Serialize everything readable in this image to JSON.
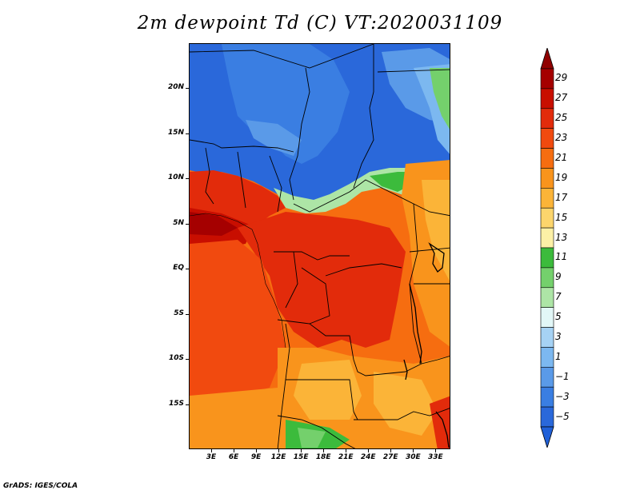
{
  "title": "2m dewpoint Td (C) VT:2020031109",
  "credit": "GrADS: IGES/COLA",
  "map": {
    "lon_range": [
      0,
      35
    ],
    "lat_range": [
      -20,
      25
    ],
    "lat_ticks": [
      {
        "value": 20,
        "label": "20N"
      },
      {
        "value": 15,
        "label": "15N"
      },
      {
        "value": 10,
        "label": "10N"
      },
      {
        "value": 5,
        "label": "5N"
      },
      {
        "value": 0,
        "label": "EQ"
      },
      {
        "value": -5,
        "label": "5S"
      },
      {
        "value": -10,
        "label": "10S"
      },
      {
        "value": -15,
        "label": "15S"
      }
    ],
    "lon_ticks": [
      {
        "value": 3,
        "label": "3E"
      },
      {
        "value": 6,
        "label": "6E"
      },
      {
        "value": 9,
        "label": "9E"
      },
      {
        "value": 12,
        "label": "12E"
      },
      {
        "value": 15,
        "label": "15E"
      },
      {
        "value": 18,
        "label": "18E"
      },
      {
        "value": 21,
        "label": "21E"
      },
      {
        "value": 24,
        "label": "24E"
      },
      {
        "value": 27,
        "label": "27E"
      },
      {
        "value": 30,
        "label": "30E"
      },
      {
        "value": 33,
        "label": "33E"
      }
    ]
  },
  "colorbar": {
    "levels": [
      {
        "label": "29",
        "color": "#a50000"
      },
      {
        "label": "27",
        "color": "#c80e00"
      },
      {
        "label": "25",
        "color": "#e22b0b"
      },
      {
        "label": "23",
        "color": "#f14a0f"
      },
      {
        "label": "21",
        "color": "#f66d10"
      },
      {
        "label": "19",
        "color": "#f9941c"
      },
      {
        "label": "17",
        "color": "#fbb438"
      },
      {
        "label": "15",
        "color": "#fcd56c"
      },
      {
        "label": "13",
        "color": "#fcf0a6"
      },
      {
        "label": "11",
        "color": "#3cbb3c"
      },
      {
        "label": "9",
        "color": "#74d06c"
      },
      {
        "label": "7",
        "color": "#ade5a6"
      },
      {
        "label": "5",
        "color": "#e2f7f7"
      },
      {
        "label": "3",
        "color": "#a6d2f4"
      },
      {
        "label": "1",
        "color": "#7cb8f0"
      },
      {
        "label": "−1",
        "color": "#5a9ae8"
      },
      {
        "label": "−3",
        "color": "#3a7ee2"
      },
      {
        "label": "−5",
        "color": "#2a68da"
      }
    ],
    "top_color": "#900000",
    "bottom_color": "#2060d8"
  }
}
